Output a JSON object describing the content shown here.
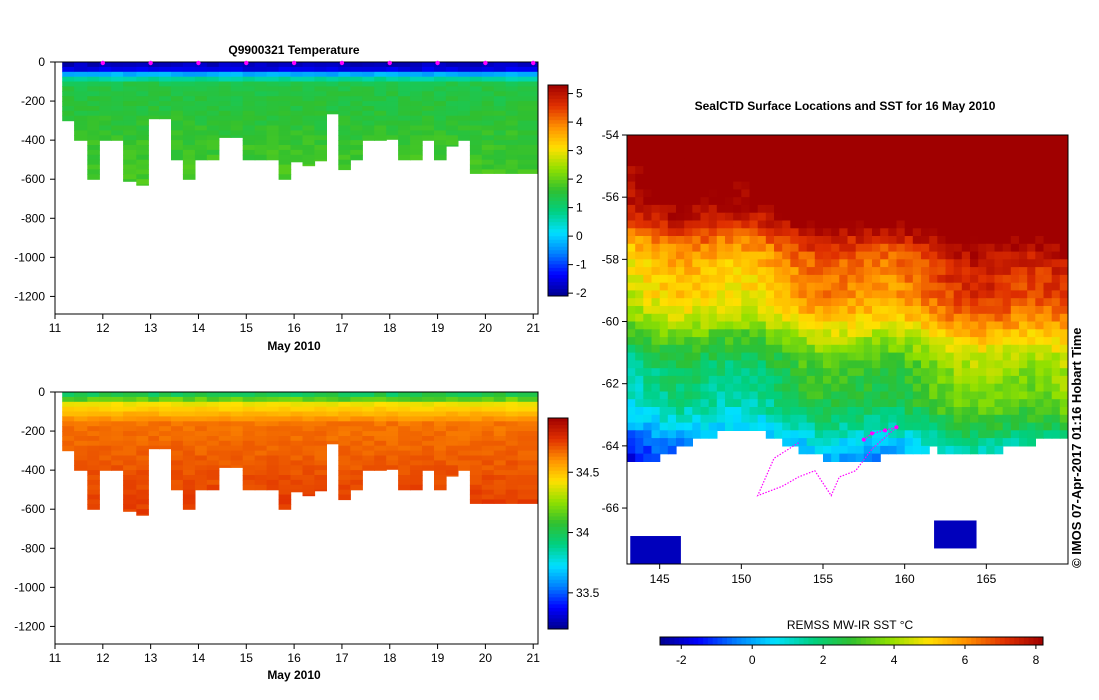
{
  "colors": {
    "jet": [
      "#00008f",
      "#0000ff",
      "#0080ff",
      "#00e0ff",
      "#00d080",
      "#30c030",
      "#90e000",
      "#ffe000",
      "#ff9000",
      "#e03000",
      "#a00000"
    ],
    "marker": "#ff00ff",
    "axis": "#000000"
  },
  "chart_data": [
    {
      "id": "temperature",
      "type": "heatmap",
      "title": "Q9900321  Temperature",
      "xlabel": "May 2010",
      "ylabel": "",
      "x_ticks": [
        11,
        12,
        13,
        14,
        15,
        16,
        17,
        18,
        19,
        20,
        21
      ],
      "xlim": [
        11,
        21.1
      ],
      "y_ticks": [
        0,
        -200,
        -400,
        -600,
        -800,
        -1000,
        -1200
      ],
      "ylim": [
        -1290,
        0
      ],
      "colorbar_ticks": [
        5,
        4,
        3,
        2,
        1,
        0,
        -1,
        -2
      ],
      "colorbar_range": [
        -2.1,
        5.3
      ],
      "profile_days": [
        11.25,
        11.55,
        11.8,
        12.05,
        12.3,
        12.55,
        12.85,
        13.05,
        13.3,
        13.55,
        13.8,
        14.05,
        14.3,
        14.55,
        14.8,
        15.05,
        15.3,
        15.55,
        15.8,
        16.05,
        16.3,
        16.55,
        16.8,
        17.05,
        17.3,
        17.55,
        17.8,
        18.05,
        18.3,
        18.55,
        18.8,
        19.05,
        19.3,
        19.55,
        19.8,
        20.05,
        20.3,
        20.55,
        20.8
      ],
      "profile_max_depth": [
        -300,
        -400,
        -600,
        -400,
        -400,
        -610,
        -630,
        -290,
        -290,
        -500,
        -600,
        -500,
        -500,
        -385,
        -385,
        -500,
        -500,
        -500,
        -600,
        -510,
        -530,
        -505,
        -265,
        -550,
        -500,
        -400,
        -400,
        -395,
        -500,
        -500,
        -400,
        -500,
        -430,
        -400,
        -570,
        -570,
        -570,
        -570,
        -570
      ],
      "surface_value": -1.8,
      "mixed_value": 1.6,
      "marker_days": [
        12,
        13,
        14,
        15,
        16,
        17,
        18,
        19,
        20,
        21
      ]
    },
    {
      "id": "salinity",
      "type": "heatmap",
      "title": "",
      "xlabel": "May 2010",
      "ylabel": "",
      "x_ticks": [
        11,
        12,
        13,
        14,
        15,
        16,
        17,
        18,
        19,
        20,
        21
      ],
      "xlim": [
        11,
        21.1
      ],
      "y_ticks": [
        0,
        -200,
        -400,
        -600,
        -800,
        -1000,
        -1200
      ],
      "ylim": [
        -1290,
        0
      ],
      "colorbar_ticks": [
        34.5,
        34,
        33.5
      ],
      "colorbar_range": [
        33.2,
        34.95
      ],
      "surface_value": 34.0,
      "deep_value": 34.7
    },
    {
      "id": "sst_map",
      "type": "heatmap",
      "title": "SealCTD Surface Locations and SST for 16 May 2010",
      "xlabel": "",
      "ylabel": "",
      "x_ticks": [
        145,
        150,
        155,
        160,
        165
      ],
      "xlim": [
        143,
        170
      ],
      "y_ticks": [
        -54,
        -56,
        -58,
        -60,
        -62,
        -64,
        -66
      ],
      "ylim": [
        -67.8,
        -54
      ],
      "colorbar_label": "REMSS MW-IR SST °C",
      "colorbar_ticks": [
        -2,
        0,
        2,
        4,
        6,
        8
      ],
      "colorbar_range": [
        -2.6,
        8.2
      ],
      "ice_edge_lat": -64.1,
      "track": [
        [
          157.5,
          -63.8
        ],
        [
          158,
          -63.6
        ],
        [
          158.8,
          -63.5
        ],
        [
          159.5,
          -63.4
        ],
        [
          158,
          -64.1
        ],
        [
          157,
          -64.8
        ],
        [
          156,
          -65
        ],
        [
          155.5,
          -65.6
        ],
        [
          154.5,
          -64.8
        ],
        [
          153.5,
          -65
        ],
        [
          152.5,
          -65.3
        ],
        [
          151,
          -65.6
        ],
        [
          152,
          -64.4
        ],
        [
          153.5,
          -63.9
        ]
      ]
    }
  ],
  "credit": "© IMOS 07-Apr-2017 01:16 Hobart Time"
}
